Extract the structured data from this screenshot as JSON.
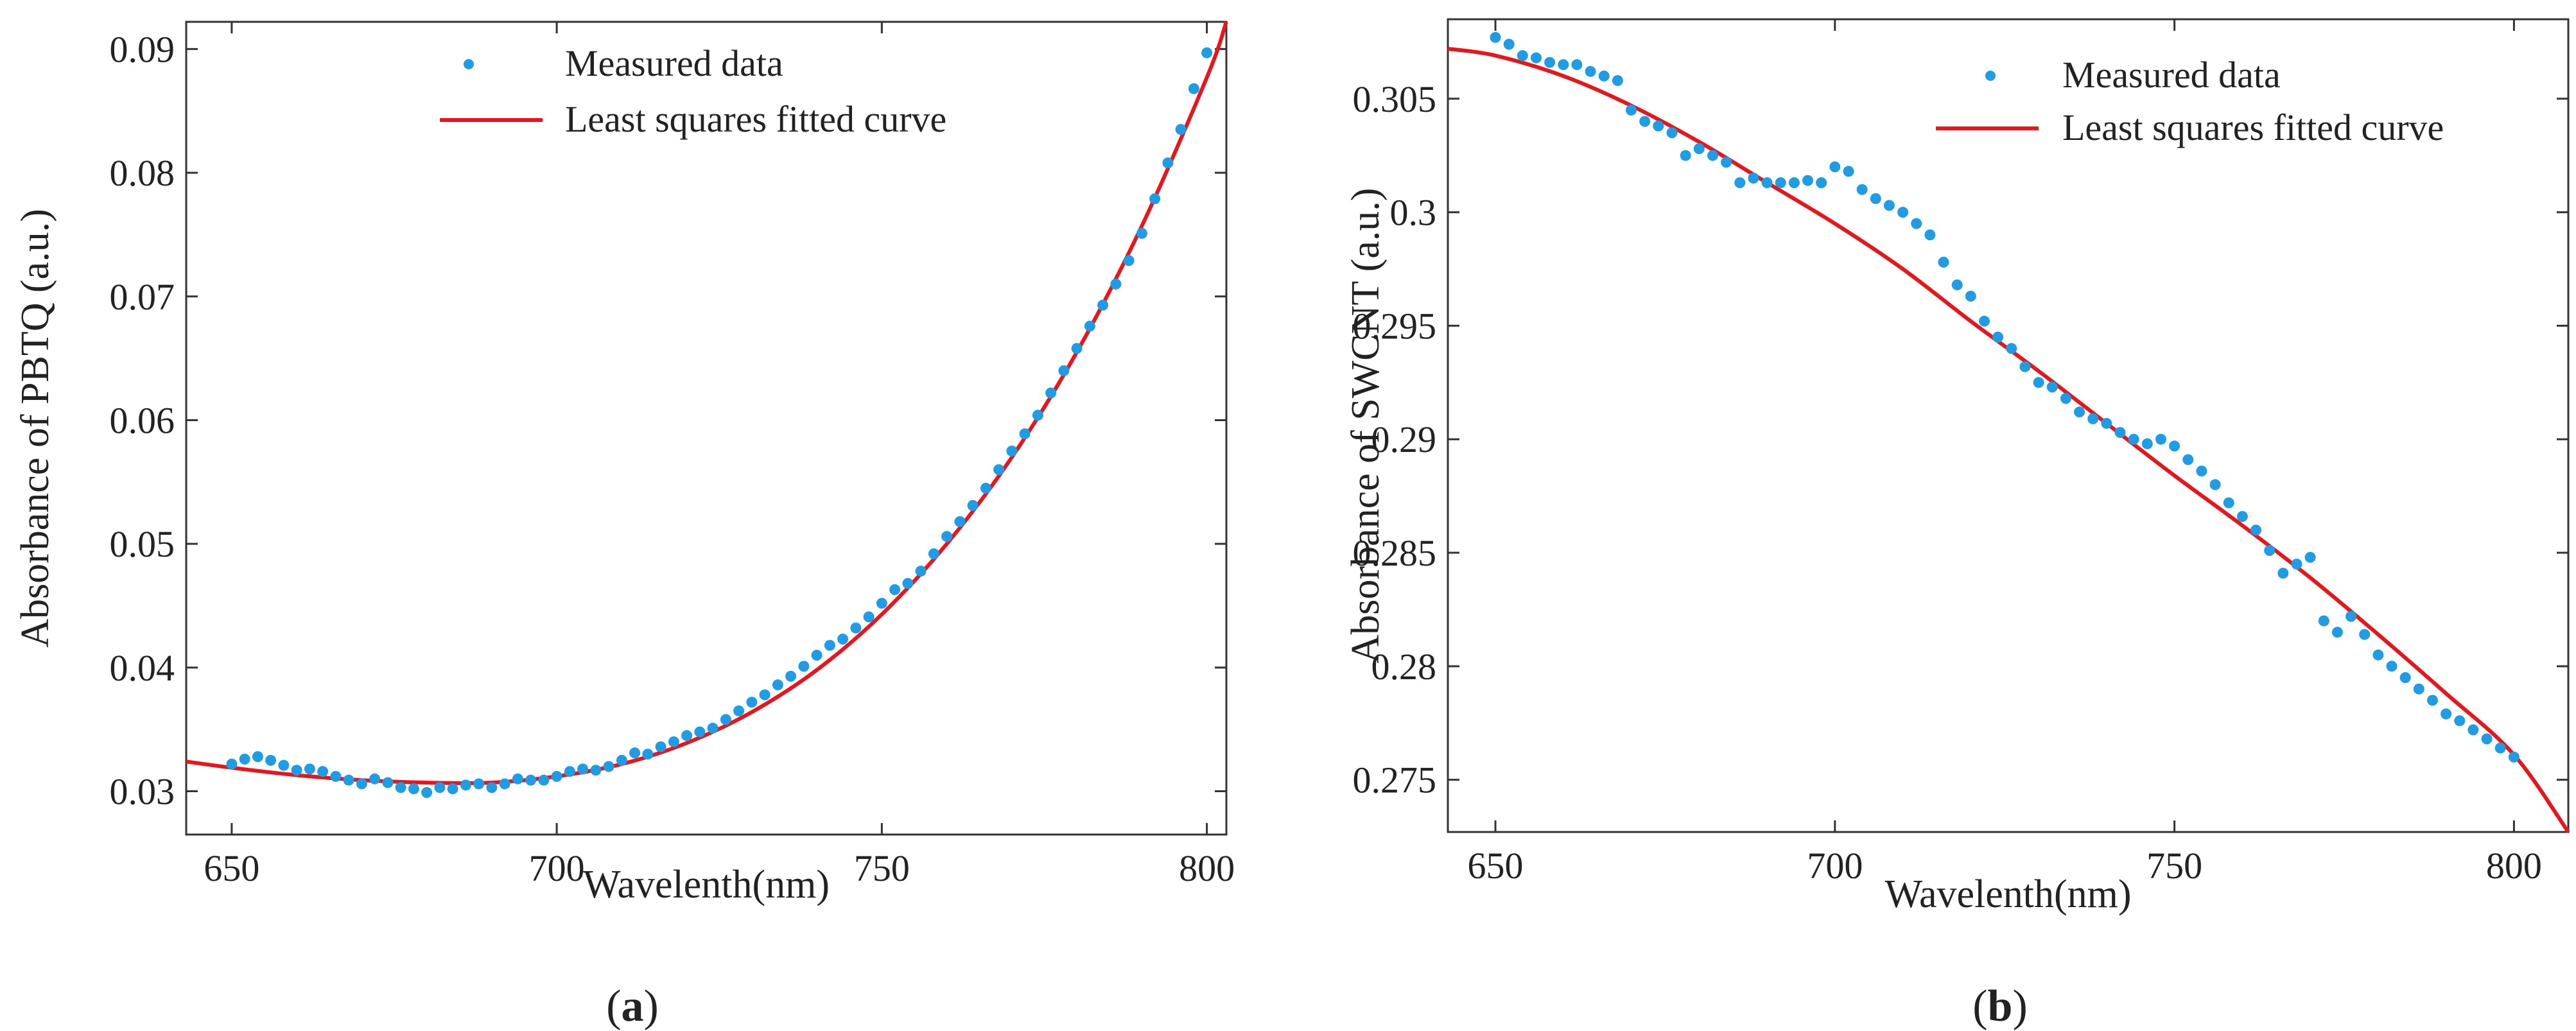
{
  "figure": {
    "panels": [
      "(a)",
      "(b)"
    ],
    "panel_parts": [
      {
        "open": "(",
        "letter": "a",
        "close": ")"
      },
      {
        "open": "(",
        "letter": "b",
        "close": ")"
      }
    ]
  },
  "colors": {
    "measured": "#1e9de6",
    "fitted": "#e8151b",
    "axis": "#333333",
    "background": "#ffffff"
  },
  "chart_data": [
    {
      "type": "scatter",
      "panel": "(a)",
      "xlabel": "Wavelenth(nm)",
      "ylabel": "Absorbance of PBTQ (a.u.)",
      "xlim": [
        643,
        803
      ],
      "ylim": [
        0.0265,
        0.0922
      ],
      "xticks": [
        650,
        700,
        750,
        800
      ],
      "xtick_labels": [
        "650",
        "700",
        "750",
        "800"
      ],
      "yticks": [
        0.03,
        0.04,
        0.05,
        0.06,
        0.07,
        0.08,
        0.09
      ],
      "ytick_labels": [
        "0.03",
        "0.04",
        "0.05",
        "0.06",
        "0.07",
        "0.08",
        "0.09"
      ],
      "legend": {
        "position": "top-center",
        "entries": [
          "Measured data",
          "Least squares fitted curve"
        ]
      },
      "series": [
        {
          "name": "Measured data",
          "style": "markers",
          "x": [
            650,
            652,
            654,
            656,
            658,
            660,
            662,
            664,
            666,
            668,
            670,
            672,
            674,
            676,
            678,
            680,
            682,
            684,
            686,
            688,
            690,
            692,
            694,
            696,
            698,
            700,
            702,
            704,
            706,
            708,
            710,
            712,
            714,
            716,
            718,
            720,
            722,
            724,
            726,
            728,
            730,
            732,
            734,
            736,
            738,
            740,
            742,
            744,
            746,
            748,
            750,
            752,
            754,
            756,
            758,
            760,
            762,
            764,
            766,
            768,
            770,
            772,
            774,
            776,
            778,
            780,
            782,
            784,
            786,
            788,
            790,
            792,
            794,
            796,
            798,
            800
          ],
          "y": [
            0.0322,
            0.0326,
            0.0328,
            0.0325,
            0.0321,
            0.0317,
            0.0318,
            0.0316,
            0.0312,
            0.0309,
            0.0306,
            0.031,
            0.0307,
            0.0303,
            0.0302,
            0.0299,
            0.0303,
            0.0302,
            0.0305,
            0.0306,
            0.0303,
            0.0306,
            0.031,
            0.0309,
            0.0309,
            0.0312,
            0.0316,
            0.0318,
            0.0317,
            0.032,
            0.0325,
            0.0331,
            0.033,
            0.0336,
            0.034,
            0.0345,
            0.0348,
            0.0351,
            0.0358,
            0.0365,
            0.0372,
            0.0378,
            0.0386,
            0.0393,
            0.0401,
            0.041,
            0.0418,
            0.0423,
            0.0432,
            0.0441,
            0.0452,
            0.0463,
            0.0468,
            0.0478,
            0.0492,
            0.0506,
            0.0518,
            0.0531,
            0.0545,
            0.056,
            0.0575,
            0.0589,
            0.0604,
            0.0622,
            0.064,
            0.0658,
            0.0676,
            0.0693,
            0.071,
            0.0729,
            0.0751,
            0.0779,
            0.0808,
            0.0835,
            0.0868,
            0.0897
          ]
        },
        {
          "name": "Least squares fitted curve",
          "style": "line",
          "x": [
            643,
            650,
            660,
            670,
            680,
            690,
            700,
            710,
            720,
            730,
            740,
            750,
            760,
            770,
            780,
            790,
            800,
            803
          ],
          "y": [
            0.0324,
            0.0319,
            0.0313,
            0.0309,
            0.0307,
            0.0307,
            0.0312,
            0.0322,
            0.0339,
            0.0364,
            0.0398,
            0.0443,
            0.05,
            0.057,
            0.0655,
            0.0757,
            0.0877,
            0.0922
          ]
        }
      ]
    },
    {
      "type": "scatter",
      "panel": "(b)",
      "xlabel": "Wavelenth(nm)",
      "ylabel": "Absorbance of SWCNT (a.u.)",
      "xlim": [
        643,
        808
      ],
      "ylim": [
        0.2727,
        0.3085
      ],
      "xticks": [
        650,
        700,
        750,
        800
      ],
      "xtick_labels": [
        "650",
        "700",
        "750",
        "800"
      ],
      "yticks": [
        0.275,
        0.28,
        0.285,
        0.29,
        0.295,
        0.3,
        0.305
      ],
      "ytick_labels": [
        "0.275",
        "0.28",
        "0.285",
        "0.29",
        "0.295",
        "0.3",
        "0.305"
      ],
      "legend": {
        "position": "top-right",
        "entries": [
          "Measured data",
          "Least squares fitted curve"
        ]
      },
      "series": [
        {
          "name": "Measured data",
          "style": "markers",
          "x": [
            650,
            652,
            654,
            656,
            658,
            660,
            662,
            664,
            666,
            668,
            670,
            672,
            674,
            676,
            678,
            680,
            682,
            684,
            686,
            688,
            690,
            692,
            694,
            696,
            698,
            700,
            702,
            704,
            706,
            708,
            710,
            712,
            714,
            716,
            718,
            720,
            722,
            724,
            726,
            728,
            730,
            732,
            734,
            736,
            738,
            740,
            742,
            744,
            746,
            748,
            750,
            752,
            754,
            756,
            758,
            760,
            762,
            764,
            766,
            768,
            770,
            772,
            774,
            776,
            778,
            780,
            782,
            784,
            786,
            788,
            790,
            792,
            794,
            796,
            798,
            800
          ],
          "y": [
            0.3077,
            0.3074,
            0.3069,
            0.3068,
            0.3066,
            0.3065,
            0.3065,
            0.3062,
            0.306,
            0.3058,
            0.3045,
            0.304,
            0.3038,
            0.3035,
            0.3025,
            0.3028,
            0.3025,
            0.3022,
            0.3013,
            0.3015,
            0.3013,
            0.3013,
            0.3013,
            0.3014,
            0.3013,
            0.302,
            0.3018,
            0.301,
            0.3006,
            0.3003,
            0.3,
            0.2995,
            0.299,
            0.2978,
            0.2968,
            0.2963,
            0.2952,
            0.2945,
            0.294,
            0.2932,
            0.2925,
            0.2923,
            0.2918,
            0.2912,
            0.2909,
            0.2907,
            0.2903,
            0.29,
            0.2898,
            0.29,
            0.2897,
            0.2891,
            0.2886,
            0.288,
            0.2872,
            0.2866,
            0.286,
            0.2851,
            0.2841,
            0.2845,
            0.2848,
            0.282,
            0.2815,
            0.2822,
            0.2814,
            0.2805,
            0.28,
            0.2795,
            0.279,
            0.2785,
            0.2779,
            0.2776,
            0.2772,
            0.2768,
            0.2764,
            0.276
          ]
        },
        {
          "name": "Least squares fitted curve",
          "style": "line",
          "x": [
            643,
            650,
            660,
            670,
            680,
            690,
            700,
            710,
            720,
            730,
            740,
            750,
            760,
            770,
            780,
            790,
            800,
            808
          ],
          "y": [
            0.3072,
            0.3069,
            0.306,
            0.3047,
            0.3031,
            0.3013,
            0.2995,
            0.2975,
            0.2952,
            0.293,
            0.2907,
            0.2884,
            0.2862,
            0.2839,
            0.2814,
            0.2788,
            0.2761,
            0.2727
          ]
        }
      ]
    }
  ]
}
